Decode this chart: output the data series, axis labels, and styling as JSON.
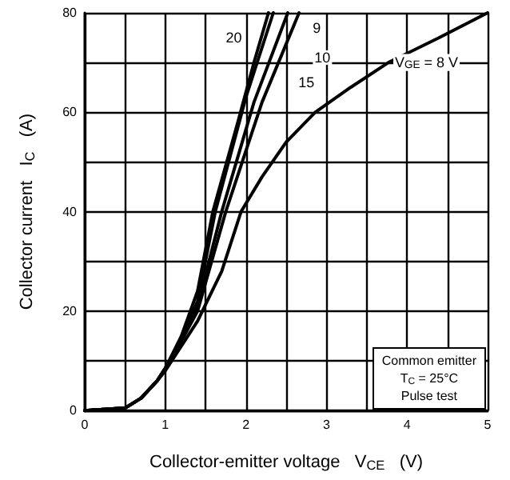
{
  "chart_data": {
    "type": "line",
    "xlabel": "Collector-emitter voltage   V$_{CE}$   (V)",
    "ylabel": "Collector current   I$_{C}$   (A)",
    "xlim": [
      0,
      5
    ],
    "xticks": [
      0,
      {
        "value": 0.5,
        "label": null
      },
      1,
      {
        "value": 1.5,
        "label": null
      },
      2,
      {
        "value": 2.5,
        "label": null
      },
      3,
      {
        "value": 3.5,
        "label": null
      },
      4,
      {
        "value": 4.5,
        "label": null
      },
      5
    ],
    "ylim": [
      0,
      80
    ],
    "yticks": [
      0,
      {
        "value": 10,
        "label": null
      },
      20,
      {
        "value": 30,
        "label": null
      },
      40,
      {
        "value": 50,
        "label": null
      },
      60,
      {
        "value": 70,
        "label": null
      },
      80
    ],
    "grid": true,
    "marker": "none",
    "line_style": "solid",
    "series": [
      {
        "color": "#000000",
        "x": [
          0,
          0.5,
          0.7,
          0.9,
          1.0,
          1.2,
          1.4,
          1.59,
          1.9,
          2.1,
          2.28
        ],
        "values": [
          0,
          0.5,
          2.5,
          6,
          8.5,
          15,
          24,
          40,
          58,
          70,
          80
        ]
      },
      {
        "color": "#000000",
        "x": [
          0,
          0.5,
          0.7,
          0.9,
          1.0,
          1.2,
          1.4,
          1.62,
          2.0,
          2.34
        ],
        "values": [
          0,
          0.5,
          2.5,
          6,
          8.5,
          14.5,
          22,
          40,
          63,
          80
        ]
      },
      {
        "color": "#000000",
        "x": [
          0,
          0.5,
          0.7,
          0.9,
          1.0,
          1.2,
          1.4,
          1.7,
          2.1,
          2.52
        ],
        "values": [
          0,
          0.5,
          2.5,
          6,
          8.5,
          14,
          21,
          40,
          62,
          80
        ]
      },
      {
        "color": "#000000",
        "x": [
          0,
          0.5,
          0.7,
          0.9,
          1.0,
          1.2,
          1.4,
          1.75,
          2.2,
          2.66
        ],
        "values": [
          0,
          0.5,
          2.5,
          6,
          8.5,
          14,
          20,
          40,
          62,
          80
        ]
      },
      {
        "color": "#000000",
        "x": [
          0,
          0.5,
          0.7,
          0.9,
          1.0,
          1.2,
          1.4,
          1.7,
          1.94,
          2.2,
          2.5,
          2.86,
          3.3,
          3.77,
          4.4,
          5
        ],
        "values": [
          0,
          0.5,
          2.5,
          6,
          8,
          13,
          18,
          28,
          40,
          47,
          54,
          60,
          65,
          70,
          75,
          80
        ]
      }
    ],
    "annotations": [
      {
        "text": "20",
        "x": 1.85,
        "y": 75
      },
      {
        "text": "9",
        "x": 2.88,
        "y": 77
      },
      {
        "text": "10",
        "x": 2.95,
        "y": 71
      },
      {
        "text": "15",
        "x": 2.75,
        "y": 66
      },
      {
        "text": "V$_{GE}$ = 8 V",
        "x": 3.77,
        "y": 70
      },
      "Common emitter\nT$_{C}$ = 25°C\nPulse test"
    ]
  }
}
